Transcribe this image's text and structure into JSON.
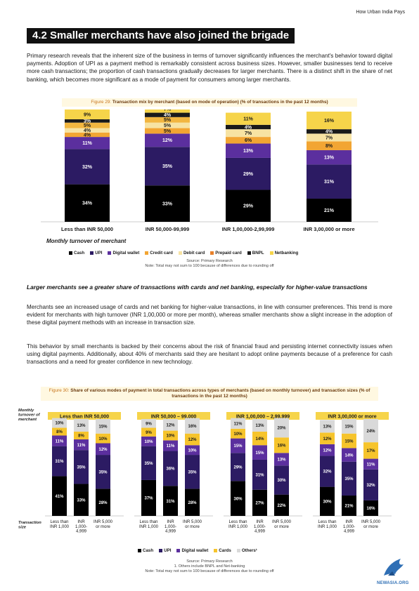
{
  "header": {
    "title": "How Urban India Pays"
  },
  "section": {
    "title": "4.2 Smaller merchants have also joined the brigade"
  },
  "intro_paragraph": "Primary research reveals that the inherent size of the business in terms of turnover significantly influences the merchant's behavior toward digital payments. Adoption of UPI as a payment method is remarkably consistent across business sizes. However, smaller businesses tend to receive more cash transactions; the proportion of cash transactions gradually decreases for larger merchants. There is a distinct shift in the share of net banking, which becomes more significant as a mode of payment for consumers among larger merchants.",
  "figure29": {
    "label": "Figure 29:",
    "title": "Transaction mix by merchant (based on mode of operation) (% of transactions in the past 12 months)",
    "xlabel": "Monthly  turnover of merchant",
    "source": "Source: Primary Research",
    "note": "Note: Total may not sum to 100 because of differences due to rounding off"
  },
  "subheading": "Larger merchants see a greater share of transactions with cards and net banking, especially for higher-value transactions",
  "paragraph2": "Merchants see an increased usage of cards and net banking for higher-value transactions, in line with consumer preferences. This trend is more evident for merchants with high turnover (INR 1,00,000 or more per month), whereas smaller merchants show a slight increase in the adoption of these digital payment methods with an increase in transaction size.",
  "paragraph3": "This behavior by small merchants is backed by their concerns about the risk of financial fraud and persisting internet connectivity issues when using digital payments. Additionally, about 40% of merchants said they are hesitant to adopt online payments because of a preference for cash transactions and a need for greater confidence in new technology.",
  "figure30": {
    "label": "Figure 30:",
    "title": "Share of various modes of payment in total transactions across types of merchants (based on monthly turnover) and transaction sizes (% of transactions in the past 12 months)",
    "row_label_top": "Monthly turnover of merchant",
    "row_label_bottom": "Transaction size",
    "source": "Source: Primary Research",
    "footnote": "1. Others include BNPL and Net-banking",
    "note": "Note: Total may not sum to 100 because of differences due to rounding off"
  },
  "logo": {
    "text": "NEWASIA.ORG"
  },
  "chart_data": [
    {
      "type": "bar",
      "stacked": true,
      "title": "Transaction mix by merchant (based on mode of operation) (% of transactions in the past 12 months)",
      "xlabel": "Monthly  turnover of merchant",
      "categories": [
        "Less than INR 50,000",
        "INR 50,000-99,999",
        "INR 1,00,000-2,99,999",
        "INR 3,00,000 or more"
      ],
      "series": [
        {
          "name": "Cash",
          "color": "#000000",
          "values": [
            34,
            33,
            29,
            21
          ]
        },
        {
          "name": "UPI",
          "color": "#2c1b63",
          "values": [
            32,
            35,
            29,
            31
          ]
        },
        {
          "name": "Digital wallet",
          "color": "#5b2f9e",
          "values": [
            11,
            12,
            13,
            13
          ]
        },
        {
          "name": "Credit card",
          "color": "#f2a533",
          "values": [
            4,
            5,
            6,
            8
          ]
        },
        {
          "name": "Debit card",
          "color": "#f7e3a3",
          "values": [
            4,
            5,
            7,
            7
          ]
        },
        {
          "name": "Prepaid card",
          "color": "#e8812a",
          "values": [
            null,
            null,
            null,
            null
          ]
        },
        {
          "name": "BNPL",
          "color": "#1a1a1a",
          "values": [
            3,
            4,
            4,
            4
          ]
        },
        {
          "name": "Netbanking",
          "color": "#f6d44a",
          "values": [
            9,
            7,
            11,
            16
          ]
        },
        {
          "name": "Small segment",
          "color": "#f2b640",
          "values": [
            5,
            5,
            null,
            null
          ]
        }
      ],
      "legend": [
        "Cash",
        "UPI",
        "Digital wallet",
        "Credit card",
        "Debit card",
        "Prepaid card",
        "BNPL",
        "Netbanking"
      ],
      "legend_position": "bottom"
    },
    {
      "type": "bar",
      "stacked": true,
      "title": "Share of various modes of payment in total transactions across types of merchants (based on monthly turnover) and transaction sizes (% of transactions in the past 12 months)",
      "groups": [
        {
          "name": "Less than INR 50,000",
          "categories": [
            "Less than INR 1,000",
            "INR 1,000-4,999",
            "INR 5,000 or more"
          ],
          "Cash": [
            41,
            33,
            28
          ],
          "UPI": [
            31,
            35,
            35
          ],
          "Digital wallet": [
            11,
            11,
            12
          ],
          "Cards": [
            8,
            8,
            10
          ],
          "Others": [
            10,
            13,
            15
          ]
        },
        {
          "name": "INR 50,000 – 99,000",
          "categories": [
            "Less than INR 1,000",
            "INR 1,000-4,999",
            "INR 5,000 or more"
          ],
          "Cash": [
            37,
            31,
            28
          ],
          "UPI": [
            35,
            36,
            35
          ],
          "Digital wallet": [
            10,
            11,
            10
          ],
          "Cards": [
            9,
            10,
            12
          ],
          "Others": [
            9,
            12,
            16
          ]
        },
        {
          "name": "INR 1,00,000 – 2,99,999",
          "categories": [
            "Less than INR 1,000",
            "INR 1,000-4,999",
            "INR 5,000 or more"
          ],
          "Cash": [
            36,
            27,
            22
          ],
          "UPI": [
            29,
            31,
            30
          ],
          "Digital wallet": [
            15,
            15,
            13
          ],
          "Cards": [
            10,
            14,
            16
          ],
          "Others": [
            11,
            13,
            20
          ]
        },
        {
          "name": "INR 3,00,000 or more",
          "categories": [
            "Less than INR 1,000",
            "INR 1,000-4,999",
            "INR 5,000 or more"
          ],
          "Cash": [
            30,
            21,
            16
          ],
          "UPI": [
            32,
            35,
            32
          ],
          "Digital wallet": [
            12,
            14,
            11
          ],
          "Cards": [
            12,
            15,
            17
          ],
          "Others": [
            13,
            15,
            24
          ]
        }
      ],
      "series_colors": {
        "Cash": "#000000",
        "UPI": "#2c1b63",
        "Digital wallet": "#5b2f9e",
        "Cards": "#f6c42c",
        "Others": "#d9d9d9"
      },
      "legend": [
        "Cash",
        "UPI",
        "Digital wallet",
        "Cards",
        "Others¹"
      ],
      "legend_position": "bottom"
    }
  ]
}
